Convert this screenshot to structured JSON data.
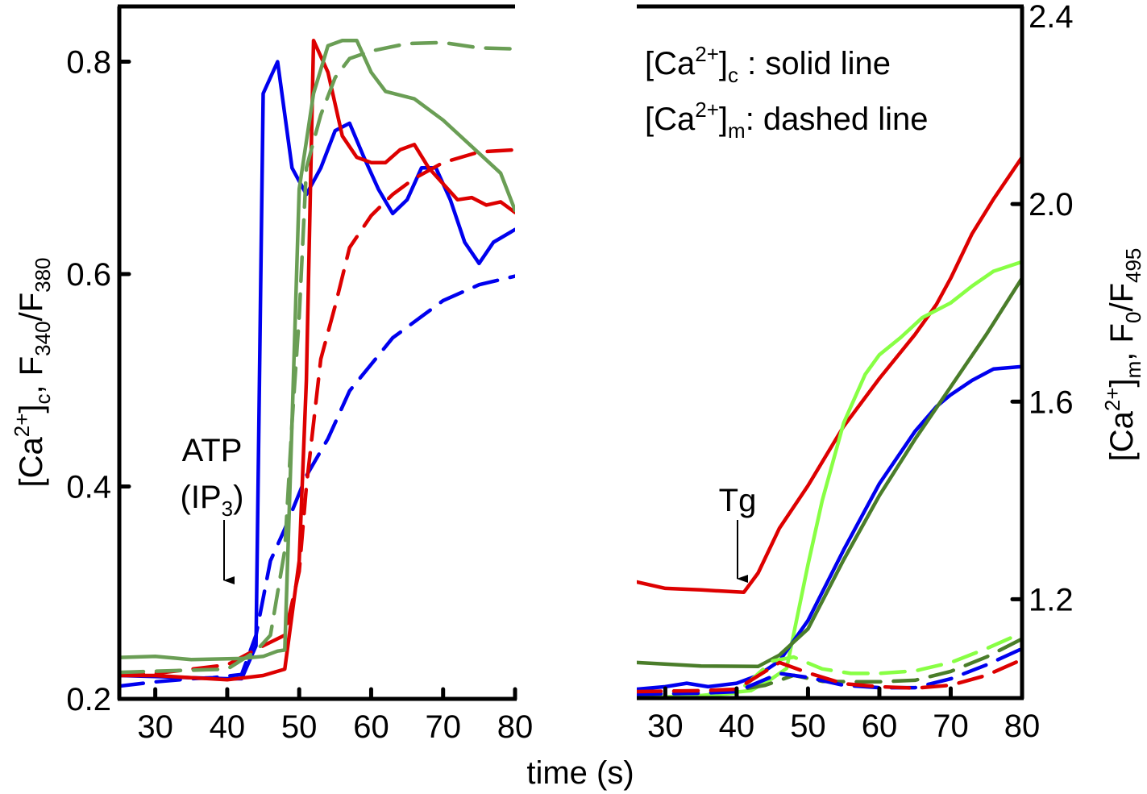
{
  "chart_data": [
    {
      "type": "line",
      "panel": "left",
      "ylabel_parts": [
        "[Ca",
        "2+",
        "]",
        "c",
        ", F",
        "340",
        "/F",
        "380"
      ],
      "ylabel": "[Ca2+]c, F340/F380",
      "xlim": [
        25,
        80
      ],
      "ylim": [
        0.2,
        0.852
      ],
      "xticks": [
        30,
        40,
        50,
        60,
        70,
        80
      ],
      "yticks": [
        0.2,
        0.4,
        0.6,
        0.8
      ],
      "ytick_labels": [
        "0.2",
        "0.4",
        "0.6",
        "0.8"
      ],
      "y_axis_side": "left",
      "grid": false,
      "annotation": {
        "line1": "ATP",
        "line2_main": "(IP",
        "line2_sub": "3",
        "line2_end": ")",
        "arrow_at_x": 40
      },
      "series": [
        {
          "name": "blue cytosolic",
          "color": "#0000ee",
          "style": "solid",
          "x": [
            25,
            30,
            35,
            40,
            42,
            44,
            45,
            47,
            49,
            51,
            53,
            55,
            57,
            59,
            61,
            63,
            65,
            67,
            69,
            71,
            73,
            75,
            77,
            80
          ],
          "y": [
            0.222,
            0.221,
            0.22,
            0.219,
            0.219,
            0.25,
            0.77,
            0.8,
            0.7,
            0.675,
            0.7,
            0.735,
            0.742,
            0.71,
            0.68,
            0.657,
            0.67,
            0.7,
            0.7,
            0.67,
            0.63,
            0.61,
            0.63,
            0.642
          ]
        },
        {
          "name": "blue mitochondrial",
          "color": "#0000ee",
          "style": "dashed",
          "x": [
            25,
            30,
            35,
            38,
            42,
            44,
            46,
            48,
            51,
            54,
            57,
            60,
            63,
            67,
            70,
            75,
            80
          ],
          "y": [
            0.212,
            0.216,
            0.219,
            0.22,
            0.223,
            0.26,
            0.33,
            0.36,
            0.41,
            0.445,
            0.49,
            0.515,
            0.54,
            0.56,
            0.575,
            0.59,
            0.598
          ]
        },
        {
          "name": "red cytosolic",
          "color": "#dd0000",
          "style": "solid",
          "x": [
            25,
            30,
            35,
            40,
            45,
            48,
            50,
            51,
            52,
            54,
            56,
            58,
            60,
            62,
            64,
            66,
            68,
            70,
            72,
            74,
            76,
            78,
            80
          ],
          "y": [
            0.222,
            0.222,
            0.22,
            0.218,
            0.222,
            0.228,
            0.33,
            0.5,
            0.82,
            0.79,
            0.73,
            0.71,
            0.705,
            0.705,
            0.717,
            0.722,
            0.7,
            0.685,
            0.67,
            0.672,
            0.665,
            0.668,
            0.658
          ]
        },
        {
          "name": "red mitochondrial",
          "color": "#dd0000",
          "style": "dashed",
          "x": [
            25,
            30,
            35,
            40,
            45,
            48,
            50,
            51,
            53,
            55,
            57,
            60,
            63,
            66,
            70,
            75,
            80
          ],
          "y": [
            0.222,
            0.224,
            0.228,
            0.232,
            0.25,
            0.26,
            0.32,
            0.4,
            0.52,
            0.57,
            0.625,
            0.655,
            0.675,
            0.69,
            0.705,
            0.715,
            0.717
          ]
        },
        {
          "name": "green cytosolic",
          "color": "#6a9e55",
          "style": "solid",
          "x": [
            25,
            30,
            35,
            42,
            45,
            47,
            48,
            49,
            50,
            52,
            54,
            56,
            58,
            60,
            62,
            66,
            70,
            74,
            78,
            80
          ],
          "y": [
            0.239,
            0.24,
            0.237,
            0.238,
            0.24,
            0.245,
            0.246,
            0.46,
            0.68,
            0.77,
            0.815,
            0.82,
            0.82,
            0.79,
            0.772,
            0.765,
            0.745,
            0.72,
            0.695,
            0.66
          ]
        },
        {
          "name": "green mitochondrial",
          "color": "#6a9e55",
          "style": "dashed",
          "x": [
            25,
            30,
            35,
            40,
            44,
            46,
            48,
            49,
            50,
            51,
            53,
            55,
            57,
            60,
            65,
            70,
            75,
            80
          ],
          "y": [
            0.225,
            0.226,
            0.227,
            0.228,
            0.245,
            0.26,
            0.34,
            0.46,
            0.56,
            0.7,
            0.75,
            0.785,
            0.803,
            0.81,
            0.817,
            0.818,
            0.813,
            0.812
          ]
        }
      ]
    },
    {
      "type": "line",
      "panel": "right",
      "ylabel_parts": [
        "[Ca",
        "2+",
        "]",
        "m",
        ",  F",
        "0",
        "/F",
        "495"
      ],
      "ylabel": "[Ca2+]m, F0/F495",
      "xlim": [
        26,
        80
      ],
      "ylim": [
        1.0,
        2.4
      ],
      "xticks": [
        30,
        40,
        50,
        60,
        70,
        80
      ],
      "yticks": [
        1.2,
        1.6,
        2.0,
        2.4
      ],
      "ytick_labels": [
        "1.2",
        "1.6",
        "2.0",
        "2.4"
      ],
      "y_axis_side": "right",
      "grid": false,
      "annotation": {
        "line1": "Tg",
        "arrow_at_x": 40
      },
      "legend": [
        {
          "main": "[Ca",
          "sup": "2+",
          "close": "]",
          "sub": "c",
          "text": " : solid line"
        },
        {
          "main": "[Ca",
          "sup": "2+",
          "close": "]",
          "sub": "m",
          "text": ": dashed line"
        }
      ],
      "series": [
        {
          "name": "red cytosolic",
          "color": "#dd0000",
          "style": "solid",
          "x": [
            26,
            30,
            35,
            41,
            43,
            46,
            50,
            55,
            60,
            65,
            68,
            70,
            73,
            76,
            80
          ],
          "y": [
            1.235,
            1.222,
            1.219,
            1.214,
            1.253,
            1.344,
            1.43,
            1.55,
            1.647,
            1.736,
            1.797,
            1.85,
            1.94,
            2.01,
            2.095
          ]
        },
        {
          "name": "light green cytosolic",
          "color": "#88ff44",
          "style": "solid",
          "x": [
            26,
            35,
            42,
            45,
            47,
            50,
            52,
            55,
            58,
            60,
            63,
            66,
            70,
            73,
            76,
            80
          ],
          "y": [
            1.0,
            1.005,
            1.015,
            1.04,
            1.06,
            1.27,
            1.4,
            1.557,
            1.655,
            1.695,
            1.73,
            1.77,
            1.8,
            1.834,
            1.864,
            1.883
          ]
        },
        {
          "name": "blue cytosolic",
          "color": "#0000ee",
          "style": "solid",
          "x": [
            26,
            30,
            33,
            36,
            40,
            43,
            46,
            50,
            55,
            60,
            65,
            68,
            70,
            73,
            76,
            80
          ],
          "y": [
            1.018,
            1.023,
            1.03,
            1.023,
            1.03,
            1.046,
            1.075,
            1.157,
            1.3,
            1.434,
            1.54,
            1.59,
            1.614,
            1.643,
            1.666,
            1.671
          ]
        },
        {
          "name": "dark green cytosolic",
          "color": "#4a7d2a",
          "style": "solid",
          "x": [
            26,
            35,
            43,
            46,
            50,
            55,
            60,
            65,
            70,
            75,
            80
          ],
          "y": [
            1.072,
            1.065,
            1.064,
            1.087,
            1.14,
            1.28,
            1.41,
            1.524,
            1.63,
            1.736,
            1.85
          ]
        },
        {
          "name": "light green mitochondrial",
          "color": "#88ff44",
          "style": "dashed",
          "x": [
            26,
            35,
            40,
            45,
            48,
            52,
            56,
            60,
            65,
            70,
            75,
            80
          ],
          "y": [
            1.002,
            1.005,
            1.01,
            1.075,
            1.083,
            1.059,
            1.05,
            1.05,
            1.055,
            1.072,
            1.1,
            1.132
          ]
        },
        {
          "name": "dark green mitochondrial",
          "color": "#4a7d2a",
          "style": "dashed",
          "x": [
            26,
            35,
            40,
            44,
            48,
            52,
            56,
            60,
            65,
            70,
            75,
            80
          ],
          "y": [
            1.007,
            1.01,
            1.016,
            1.026,
            1.046,
            1.034,
            1.033,
            1.033,
            1.036,
            1.054,
            1.083,
            1.12
          ]
        },
        {
          "name": "blue mitochondrial",
          "color": "#0000ee",
          "style": "dashed",
          "x": [
            26,
            35,
            40,
            46,
            50,
            55,
            60,
            65,
            70,
            75,
            80
          ],
          "y": [
            1.008,
            1.01,
            1.013,
            1.05,
            1.042,
            1.026,
            1.021,
            1.021,
            1.039,
            1.067,
            1.1
          ]
        },
        {
          "name": "red mitochondrial",
          "color": "#dd0000",
          "style": "dashed",
          "x": [
            26,
            35,
            40,
            46,
            50,
            55,
            60,
            65,
            70,
            75,
            80
          ],
          "y": [
            1.013,
            1.015,
            1.018,
            1.072,
            1.051,
            1.029,
            1.023,
            1.02,
            1.026,
            1.046,
            1.078
          ]
        }
      ]
    }
  ],
  "shared_xlabel": "time (s)"
}
